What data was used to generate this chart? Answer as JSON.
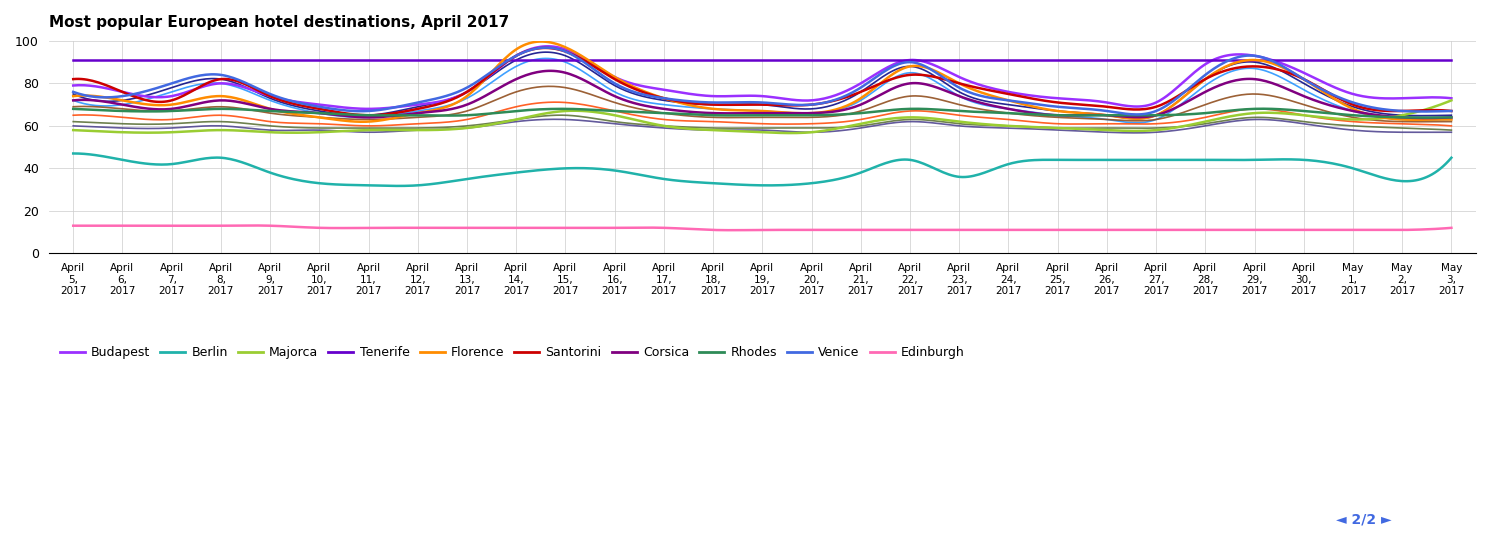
{
  "title": "Most popular European hotel destinations, April 2017",
  "ylim": [
    0,
    100
  ],
  "yticks": [
    0,
    20,
    40,
    60,
    80,
    100
  ],
  "x_labels": [
    "April\n5,\n2017",
    "April\n6,\n2017",
    "April\n7,\n2017",
    "April\n8,\n2017",
    "April\n9,\n2017",
    "April\n10,\n2017",
    "April\n11,\n2017",
    "April\n12,\n2017",
    "April\n13,\n2017",
    "April\n14,\n2017",
    "April\n15,\n2017",
    "April\n16,\n2017",
    "April\n17,\n2017",
    "April\n18,\n2017",
    "April\n19,\n2017",
    "April\n20,\n2017",
    "April\n21,\n2017",
    "April\n22,\n2017",
    "April\n23,\n2017",
    "April\n24,\n2017",
    "April\n25,\n2017",
    "April\n26,\n2017",
    "April\n27,\n2017",
    "April\n28,\n2017",
    "April\n29,\n2017",
    "April\n30,\n2017",
    "May\n1,\n2017",
    "May\n2,\n2017",
    "May\n3,\n2017"
  ],
  "series": [
    {
      "label": "Budapest",
      "color": "#9B30FF",
      "data": [
        79,
        76,
        74,
        80,
        74,
        70,
        68,
        70,
        76,
        93,
        96,
        83,
        77,
        74,
        74,
        72,
        80,
        91,
        83,
        76,
        73,
        71,
        71,
        89,
        93,
        85,
        75,
        73,
        73
      ]
    },
    {
      "label": "Berlin",
      "color": "#20B2AA",
      "data": [
        47,
        44,
        42,
        45,
        38,
        33,
        32,
        32,
        35,
        38,
        40,
        39,
        35,
        33,
        32,
        33,
        38,
        44,
        36,
        42,
        44,
        44,
        44,
        44,
        44,
        44,
        40,
        34,
        45
      ]
    },
    {
      "label": "Majorca",
      "color": "#9ACD32",
      "data": [
        58,
        57,
        57,
        58,
        57,
        57,
        58,
        58,
        59,
        63,
        67,
        65,
        60,
        58,
        57,
        57,
        61,
        64,
        62,
        60,
        59,
        58,
        58,
        62,
        66,
        65,
        63,
        65,
        72
      ]
    },
    {
      "label": "Tenerife",
      "color": "#6600CC",
      "data": [
        91,
        91,
        91,
        91,
        91,
        91,
        91,
        91,
        91,
        91,
        91,
        91,
        91,
        91,
        91,
        91,
        91,
        91,
        91,
        91,
        91,
        91,
        91,
        91,
        91,
        91,
        91,
        91,
        91
      ]
    },
    {
      "label": "Florence",
      "color": "#FF8C00",
      "data": [
        74,
        72,
        70,
        74,
        68,
        64,
        62,
        66,
        74,
        96,
        97,
        83,
        73,
        68,
        67,
        66,
        73,
        88,
        80,
        72,
        67,
        65,
        65,
        82,
        91,
        82,
        68,
        63,
        63
      ]
    },
    {
      "label": "Santorini",
      "color": "#CC0000",
      "data": [
        82,
        76,
        72,
        82,
        74,
        68,
        65,
        68,
        76,
        93,
        95,
        82,
        73,
        70,
        70,
        70,
        76,
        84,
        80,
        75,
        71,
        69,
        69,
        82,
        88,
        82,
        70,
        67,
        67
      ]
    },
    {
      "label": "Corsica",
      "color": "#800080",
      "data": [
        72,
        70,
        68,
        72,
        68,
        66,
        64,
        66,
        70,
        82,
        85,
        74,
        68,
        66,
        66,
        66,
        70,
        80,
        74,
        68,
        65,
        65,
        65,
        76,
        82,
        74,
        67,
        64,
        64
      ]
    },
    {
      "label": "Rhodes",
      "color": "#2E8B57",
      "data": [
        68,
        67,
        67,
        68,
        67,
        66,
        65,
        65,
        65,
        67,
        68,
        67,
        66,
        65,
        65,
        65,
        66,
        68,
        67,
        66,
        65,
        65,
        65,
        66,
        68,
        67,
        65,
        64,
        64
      ]
    },
    {
      "label": "Venice",
      "color": "#4169E1",
      "data": [
        76,
        74,
        80,
        84,
        75,
        69,
        67,
        71,
        78,
        93,
        95,
        80,
        73,
        71,
        71,
        70,
        78,
        90,
        78,
        72,
        69,
        67,
        67,
        84,
        93,
        82,
        71,
        67,
        67
      ]
    },
    {
      "label": "Edinburgh",
      "color": "#FF69B4",
      "data": [
        13,
        13,
        13,
        13,
        13,
        12,
        12,
        12,
        12,
        12,
        12,
        12,
        12,
        11,
        11,
        11,
        11,
        11,
        11,
        11,
        11,
        11,
        11,
        11,
        11,
        11,
        11,
        11,
        12
      ]
    }
  ],
  "extra_series": [
    {
      "color": "#000080",
      "data": [
        75,
        72,
        78,
        82,
        73,
        67,
        65,
        69,
        76,
        91,
        93,
        79,
        72,
        70,
        70,
        68,
        76,
        88,
        76,
        70,
        67,
        65,
        65,
        82,
        90,
        80,
        69,
        65,
        65
      ]
    },
    {
      "color": "#1E90FF",
      "data": [
        72,
        70,
        76,
        80,
        72,
        66,
        64,
        67,
        73,
        88,
        90,
        76,
        70,
        68,
        67,
        66,
        72,
        85,
        74,
        68,
        65,
        63,
        63,
        79,
        87,
        77,
        67,
        63,
        63
      ]
    },
    {
      "color": "#FF4500",
      "data": [
        65,
        64,
        63,
        65,
        62,
        61,
        60,
        61,
        63,
        69,
        71,
        67,
        63,
        62,
        61,
        61,
        63,
        67,
        65,
        63,
        61,
        61,
        61,
        64,
        68,
        65,
        62,
        61,
        60
      ]
    },
    {
      "color": "#556B2F",
      "data": [
        62,
        61,
        61,
        62,
        60,
        59,
        59,
        59,
        60,
        63,
        65,
        62,
        60,
        59,
        59,
        59,
        60,
        63,
        61,
        60,
        59,
        59,
        59,
        61,
        64,
        62,
        60,
        59,
        58
      ]
    },
    {
      "color": "#8B4513",
      "data": [
        69,
        68,
        67,
        69,
        66,
        64,
        63,
        64,
        67,
        76,
        78,
        71,
        66,
        64,
        64,
        64,
        67,
        74,
        70,
        66,
        64,
        63,
        63,
        70,
        75,
        70,
        64,
        62,
        62
      ]
    },
    {
      "color": "#483D8B",
      "data": [
        60,
        59,
        59,
        60,
        58,
        58,
        57,
        58,
        59,
        62,
        63,
        61,
        59,
        58,
        58,
        57,
        59,
        62,
        60,
        59,
        58,
        57,
        57,
        60,
        63,
        61,
        58,
        57,
        57
      ]
    }
  ],
  "legend_entries": [
    {
      "label": "Budapest",
      "color": "#9B30FF"
    },
    {
      "label": "Berlin",
      "color": "#20B2AA"
    },
    {
      "label": "Majorca",
      "color": "#9ACD32"
    },
    {
      "label": "Tenerife",
      "color": "#6600CC"
    },
    {
      "label": "Florence",
      "color": "#FF8C00"
    },
    {
      "label": "Santorini",
      "color": "#CC0000"
    },
    {
      "label": "Corsica",
      "color": "#800080"
    },
    {
      "label": "Rhodes",
      "color": "#2E8B57"
    },
    {
      "label": "Venice",
      "color": "#4169E1"
    },
    {
      "label": "Edinburgh",
      "color": "#FF69B4"
    }
  ],
  "page_indicator": "◄ 2/2 ►",
  "page_indicator_color": "#4169E1"
}
